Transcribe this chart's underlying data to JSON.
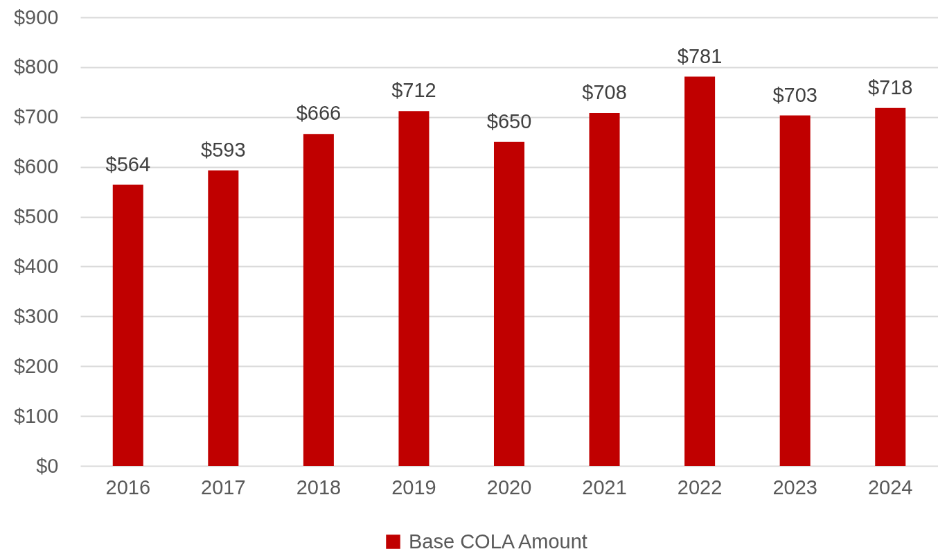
{
  "chart_data": {
    "type": "bar",
    "categories": [
      "2016",
      "2017",
      "2018",
      "2019",
      "2020",
      "2021",
      "2022",
      "2023",
      "2024"
    ],
    "series": [
      {
        "name": "Base COLA Amount",
        "color": "#c00000",
        "values": [
          564,
          593,
          666,
          712,
          650,
          708,
          781,
          703,
          718
        ],
        "value_labels": [
          "$564",
          "$593",
          "$666",
          "$712",
          "$650",
          "$708",
          "$781",
          "$703",
          "$718"
        ]
      }
    ],
    "ylim": [
      0,
      900
    ],
    "yticks": [
      {
        "value": 0,
        "label": "$0"
      },
      {
        "value": 100,
        "label": "$100"
      },
      {
        "value": 200,
        "label": "$200"
      },
      {
        "value": 300,
        "label": "$300"
      },
      {
        "value": 400,
        "label": "$400"
      },
      {
        "value": 500,
        "label": "$500"
      },
      {
        "value": 600,
        "label": "$600"
      },
      {
        "value": 700,
        "label": "$700"
      },
      {
        "value": 800,
        "label": "$800"
      },
      {
        "value": 900,
        "label": "$900"
      }
    ],
    "grid": "y",
    "legend": "bottom"
  }
}
